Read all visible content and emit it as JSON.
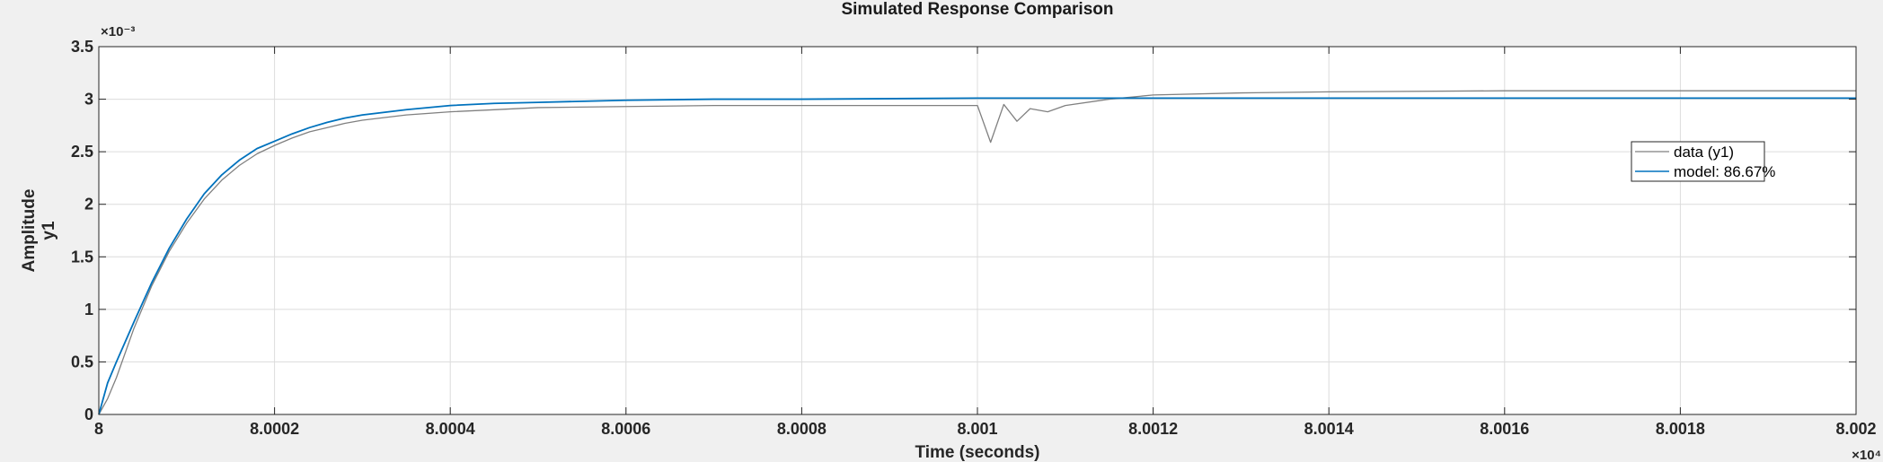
{
  "chart_data": {
    "type": "line",
    "title": "Simulated Response Comparison",
    "xlabel": "Time (seconds)",
    "ylabel": "Amplitude",
    "ylabel2": "y1",
    "x_multiplier": "×10⁴",
    "y_multiplier": "×10⁻³",
    "xlim": [
      8.0,
      8.002
    ],
    "ylim": [
      0,
      3.5
    ],
    "xticks": [
      8.0,
      8.0002,
      8.0004,
      8.0006,
      8.0008,
      8.001,
      8.0012,
      8.0014,
      8.0016,
      8.0018,
      8.002
    ],
    "xtick_labels": [
      "8",
      "8.0002",
      "8.0004",
      "8.0006",
      "8.0008",
      "8.001",
      "8.0012",
      "8.0014",
      "8.0016",
      "8.0018",
      "8.002"
    ],
    "yticks": [
      0,
      0.5,
      1,
      1.5,
      2,
      2.5,
      3,
      3.5
    ],
    "ytick_labels": [
      "0",
      "0.5",
      "1",
      "1.5",
      "2",
      "2.5",
      "3",
      "3.5"
    ],
    "grid": true,
    "legend_position": "right",
    "series": [
      {
        "name": "data (y1)",
        "color": "#808080",
        "x": [
          8.0,
          8.00001,
          8.00002,
          8.00004,
          8.00006,
          8.00008,
          8.0001,
          8.00012,
          8.00014,
          8.00016,
          8.00018,
          8.0002,
          8.00022,
          8.00024,
          8.00026,
          8.00028,
          8.0003,
          8.00035,
          8.0004,
          8.00045,
          8.0005,
          8.0006,
          8.0007,
          8.0008,
          8.0009,
          8.001,
          8.001015,
          8.00103,
          8.001045,
          8.00106,
          8.00108,
          8.0011,
          8.00115,
          8.0012,
          8.0013,
          8.0014,
          8.0016,
          8.0018,
          8.002
        ],
        "y": [
          0.0,
          0.15,
          0.35,
          0.82,
          1.22,
          1.55,
          1.82,
          2.05,
          2.23,
          2.37,
          2.48,
          2.56,
          2.63,
          2.69,
          2.73,
          2.77,
          2.8,
          2.85,
          2.88,
          2.9,
          2.92,
          2.93,
          2.94,
          2.94,
          2.94,
          2.94,
          2.59,
          2.95,
          2.79,
          2.91,
          2.88,
          2.94,
          3.0,
          3.04,
          3.06,
          3.07,
          3.08,
          3.08,
          3.08
        ]
      },
      {
        "name": "model: 86.67%",
        "color": "#0072BD",
        "x": [
          8.0,
          8.00001,
          8.00002,
          8.00004,
          8.00006,
          8.00008,
          8.0001,
          8.00012,
          8.00014,
          8.00016,
          8.00018,
          8.0002,
          8.00022,
          8.00024,
          8.00026,
          8.00028,
          8.0003,
          8.00035,
          8.0004,
          8.00045,
          8.0005,
          8.0006,
          8.0007,
          8.0008,
          8.001,
          8.0012,
          8.0014,
          8.0016,
          8.0018,
          8.002
        ],
        "y": [
          0.0,
          0.3,
          0.5,
          0.88,
          1.25,
          1.58,
          1.86,
          2.1,
          2.28,
          2.42,
          2.53,
          2.6,
          2.67,
          2.73,
          2.78,
          2.82,
          2.85,
          2.9,
          2.94,
          2.96,
          2.97,
          2.99,
          3.0,
          3.0,
          3.01,
          3.01,
          3.01,
          3.01,
          3.01,
          3.01
        ]
      }
    ]
  }
}
